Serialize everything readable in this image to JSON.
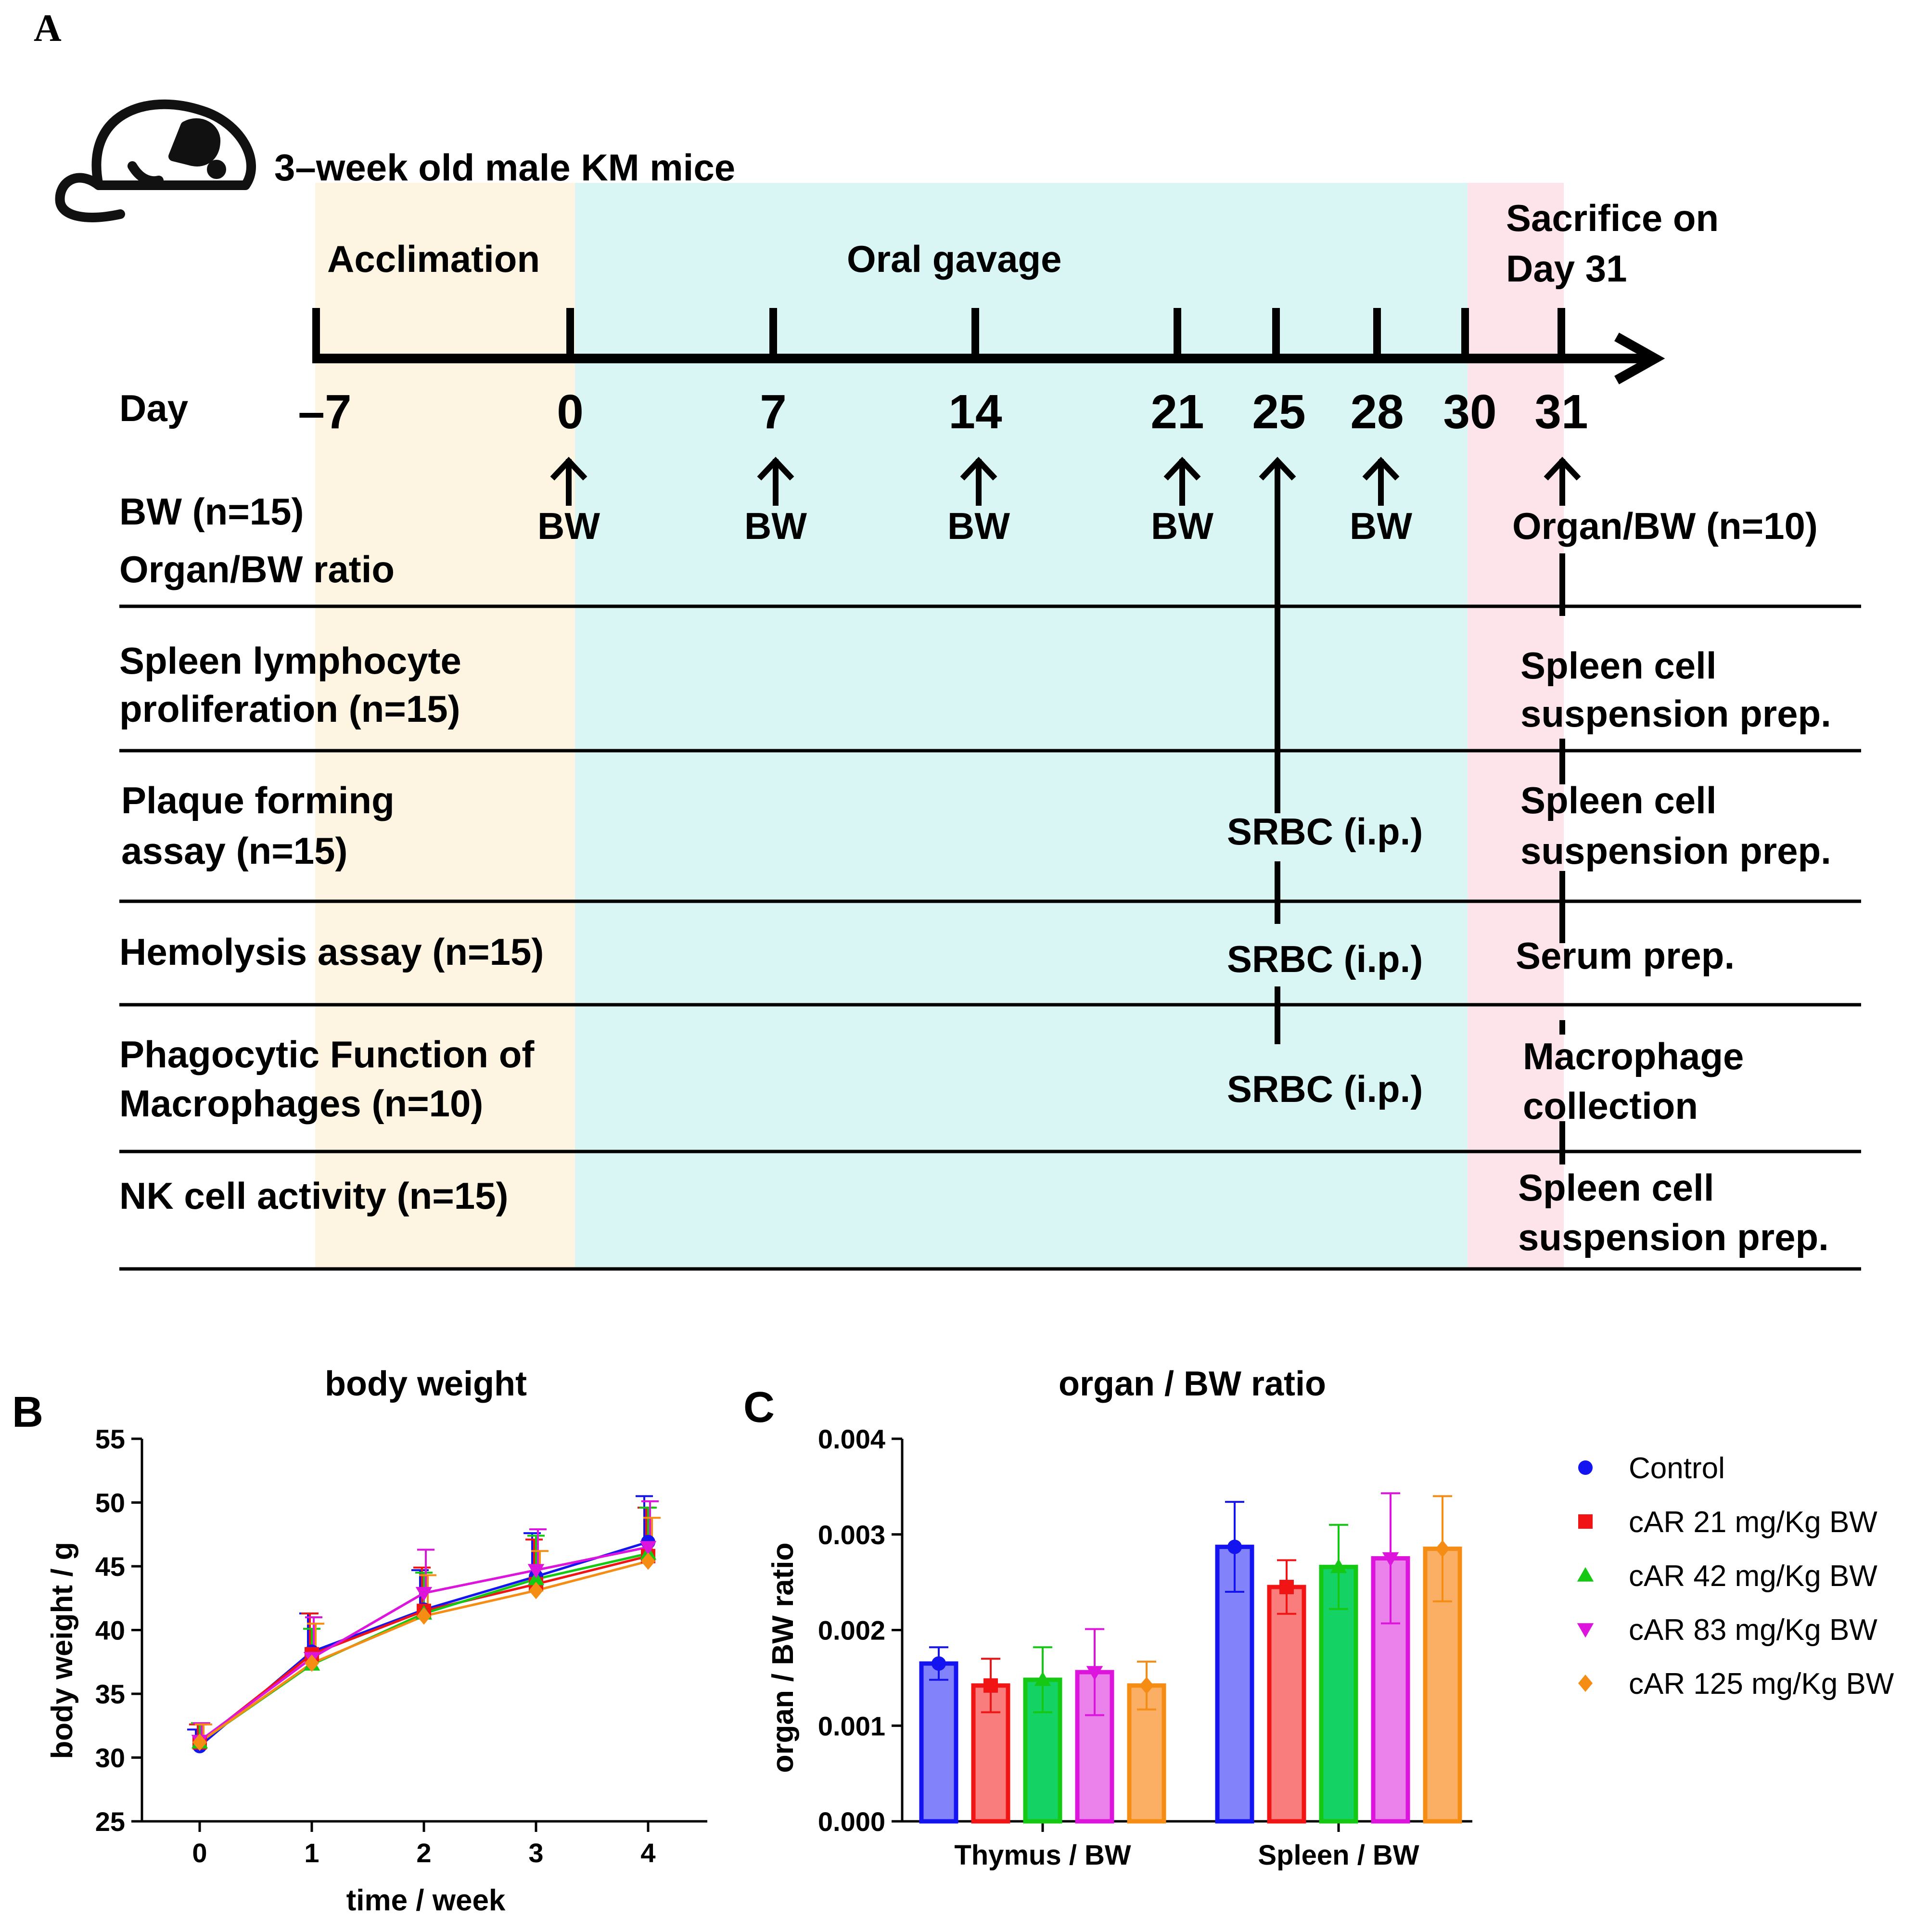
{
  "panel_labels": {
    "a": "A",
    "b": "B",
    "c": "C"
  },
  "timeline": {
    "header": "3–week old male KM mice",
    "phases": {
      "acclimation": "Acclimation",
      "gavage": "Oral gavage",
      "sacrifice_1": "Sacrifice on",
      "sacrifice_2": "Day 31"
    },
    "phase_colors": {
      "acclimation": "#fdf4e1",
      "gavage": "#d9f6f5",
      "sacrifice": "#fde3ea"
    },
    "day_label": "Day",
    "days": [
      "–7",
      "0",
      "7",
      "14",
      "21",
      "25",
      "28",
      "30",
      "31"
    ],
    "bw_marks": [
      "BW",
      "BW",
      "BW",
      "BW",
      "BW"
    ],
    "organ_bw_mark": "Organ/BW (n=10)",
    "rows": {
      "bw": {
        "label_1": "BW (n=15)",
        "label_2": "Organ/BW ratio"
      },
      "spleen_prolif": {
        "label_1": "Spleen lymphocyte",
        "label_2": "proliferation (n=15)",
        "end_1": "Spleen cell",
        "end_2": "suspension prep."
      },
      "plaque": {
        "label_1": "Plaque forming",
        "label_2": "assay (n=15)",
        "mid": "SRBC (i.p.)",
        "end_1": "Spleen cell",
        "end_2": "suspension prep."
      },
      "hemolysis": {
        "label_1": "Hemolysis assay (n=15)",
        "mid": "SRBC (i.p.)",
        "end_1": "Serum prep."
      },
      "phago": {
        "label_1": "Phagocytic Function of",
        "label_2": "Macrophages (n=10)",
        "mid": "SRBC (i.p.)",
        "end_1": "Macrophage",
        "end_2": "collection"
      },
      "nk": {
        "label_1": "NK cell activity (n=15)",
        "end_1": "Spleen cell",
        "end_2": "suspension prep."
      }
    }
  },
  "chart_data": [
    {
      "type": "line",
      "title": "body weight",
      "xlabel": "time / week",
      "ylabel": "body weight  / g",
      "x": [
        0,
        1,
        2,
        3,
        4
      ],
      "xticks": [
        "0",
        "1",
        "2",
        "3",
        "4"
      ],
      "ylim": [
        25,
        55
      ],
      "yticks": [
        "25",
        "30",
        "35",
        "40",
        "45",
        "50",
        "55"
      ],
      "series": [
        {
          "name": "Control",
          "color": "#1414f0",
          "marker": "circle",
          "values": [
            30.9,
            38.3,
            41.6,
            44.2,
            46.9
          ],
          "err": [
            1.3,
            3.0,
            3.1,
            3.4,
            3.6
          ]
        },
        {
          "name": "cAR 21 mg/Kg BW",
          "color": "#f01414",
          "marker": "square",
          "values": [
            31.2,
            38.1,
            41.5,
            43.6,
            45.8
          ],
          "err": [
            1.4,
            3.2,
            3.4,
            3.5,
            3.8
          ]
        },
        {
          "name": "cAR 42 mg/Kg BW",
          "color": "#14c814",
          "marker": "triangle-up",
          "values": [
            31.2,
            37.3,
            41.3,
            44.0,
            46.0
          ],
          "err": [
            1.5,
            2.8,
            3.2,
            3.4,
            3.6
          ]
        },
        {
          "name": "cAR 83 mg/Kg BW",
          "color": "#dc14dc",
          "marker": "triangle-down",
          "values": [
            31.3,
            37.8,
            42.9,
            44.7,
            46.5
          ],
          "err": [
            1.4,
            3.2,
            3.4,
            3.2,
            3.6
          ]
        },
        {
          "name": "cAR 125 mg/Kg BW",
          "color": "#f58c14",
          "marker": "diamond",
          "values": [
            31.2,
            37.4,
            41.1,
            43.1,
            45.4
          ],
          "err": [
            1.4,
            3.1,
            3.2,
            3.1,
            3.4
          ]
        }
      ]
    },
    {
      "type": "bar",
      "title": "organ / BW ratio",
      "xlabel": "",
      "ylabel": "organ / BW ratio",
      "categories": [
        "Thymus / BW",
        "Spleen / BW"
      ],
      "ylim": [
        0,
        0.004
      ],
      "yticks": [
        "0.000",
        "0.001",
        "0.002",
        "0.003",
        "0.004"
      ],
      "legend_position": "right",
      "series": [
        {
          "name": "Control",
          "color": "#1414f0",
          "fill": "#8282fa",
          "marker": "circle",
          "values": [
            0.00165,
            0.00287
          ],
          "err": [
            0.00017,
            0.00047
          ]
        },
        {
          "name": "cAR 21 mg/Kg BW",
          "color": "#f01414",
          "fill": "#fa7d7d",
          "marker": "square",
          "values": [
            0.00142,
            0.00245
          ],
          "err": [
            0.00028,
            0.00028
          ]
        },
        {
          "name": "cAR 42 mg/Kg BW",
          "color": "#14c814",
          "fill": "#14d264",
          "marker": "triangle-up",
          "values": [
            0.00148,
            0.00266
          ],
          "err": [
            0.00034,
            0.00044
          ]
        },
        {
          "name": "cAR 83 mg/Kg BW",
          "color": "#dc14dc",
          "fill": "#eb82eb",
          "marker": "triangle-down",
          "values": [
            0.00156,
            0.00275
          ],
          "err": [
            0.00045,
            0.00068
          ]
        },
        {
          "name": "cAR 125 mg/Kg BW",
          "color": "#f58c14",
          "fill": "#faaf64",
          "marker": "diamond",
          "values": [
            0.00142,
            0.00285
          ],
          "err": [
            0.00025,
            0.00055
          ]
        }
      ]
    }
  ]
}
